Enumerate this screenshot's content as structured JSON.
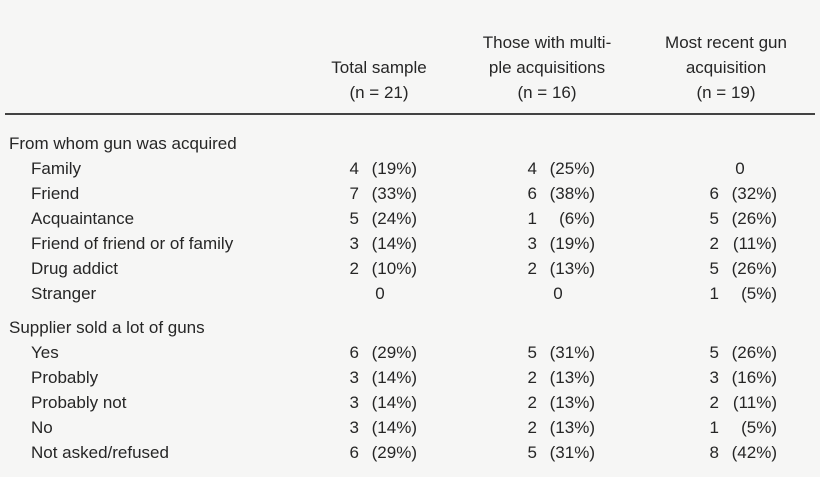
{
  "colors": {
    "background": "#f6f6f5",
    "text": "#262626",
    "rule": "#424242"
  },
  "table": {
    "columns": [
      {
        "lines": [
          "Total sample",
          "(n = 21)"
        ]
      },
      {
        "lines": [
          "Those with multi-",
          "ple acquisitions",
          "(n = 16)"
        ]
      },
      {
        "lines": [
          "Most recent gun",
          "acquisition",
          "(n = 19)"
        ]
      }
    ],
    "sections": [
      {
        "header": "From whom gun was acquired",
        "rows": [
          {
            "label": "Family",
            "cells": [
              {
                "count": "4",
                "pct": "(19%)"
              },
              {
                "count": "4",
                "pct": "(25%)"
              },
              {
                "count": "0",
                "pct": ""
              }
            ]
          },
          {
            "label": "Friend",
            "cells": [
              {
                "count": "7",
                "pct": "(33%)"
              },
              {
                "count": "6",
                "pct": "(38%)"
              },
              {
                "count": "6",
                "pct": "(32%)"
              }
            ]
          },
          {
            "label": "Acquaintance",
            "cells": [
              {
                "count": "5",
                "pct": "(24%)"
              },
              {
                "count": "1",
                "pct": "(6%)"
              },
              {
                "count": "5",
                "pct": "(26%)"
              }
            ]
          },
          {
            "label": "Friend of friend or of family",
            "cells": [
              {
                "count": "3",
                "pct": "(14%)"
              },
              {
                "count": "3",
                "pct": "(19%)"
              },
              {
                "count": "2",
                "pct": "(11%)"
              }
            ]
          },
          {
            "label": "Drug addict",
            "cells": [
              {
                "count": "2",
                "pct": "(10%)"
              },
              {
                "count": "2",
                "pct": "(13%)"
              },
              {
                "count": "5",
                "pct": "(26%)"
              }
            ]
          },
          {
            "label": "Stranger",
            "cells": [
              {
                "count": "0",
                "pct": ""
              },
              {
                "count": "0",
                "pct": ""
              },
              {
                "count": "1",
                "pct": "(5%)"
              }
            ]
          }
        ]
      },
      {
        "header": "Supplier sold a lot of guns",
        "rows": [
          {
            "label": "Yes",
            "cells": [
              {
                "count": "6",
                "pct": "(29%)"
              },
              {
                "count": "5",
                "pct": "(31%)"
              },
              {
                "count": "5",
                "pct": "(26%)"
              }
            ]
          },
          {
            "label": "Probably",
            "cells": [
              {
                "count": "3",
                "pct": "(14%)"
              },
              {
                "count": "2",
                "pct": "(13%)"
              },
              {
                "count": "3",
                "pct": "(16%)"
              }
            ]
          },
          {
            "label": "Probably not",
            "cells": [
              {
                "count": "3",
                "pct": "(14%)"
              },
              {
                "count": "2",
                "pct": "(13%)"
              },
              {
                "count": "2",
                "pct": "(11%)"
              }
            ]
          },
          {
            "label": "No",
            "cells": [
              {
                "count": "3",
                "pct": "(14%)"
              },
              {
                "count": "2",
                "pct": "(13%)"
              },
              {
                "count": "1",
                "pct": "(5%)"
              }
            ]
          },
          {
            "label": "Not asked/refused",
            "cells": [
              {
                "count": "6",
                "pct": "(29%)"
              },
              {
                "count": "5",
                "pct": "(31%)"
              },
              {
                "count": "8",
                "pct": "(42%)"
              }
            ]
          }
        ]
      }
    ]
  }
}
